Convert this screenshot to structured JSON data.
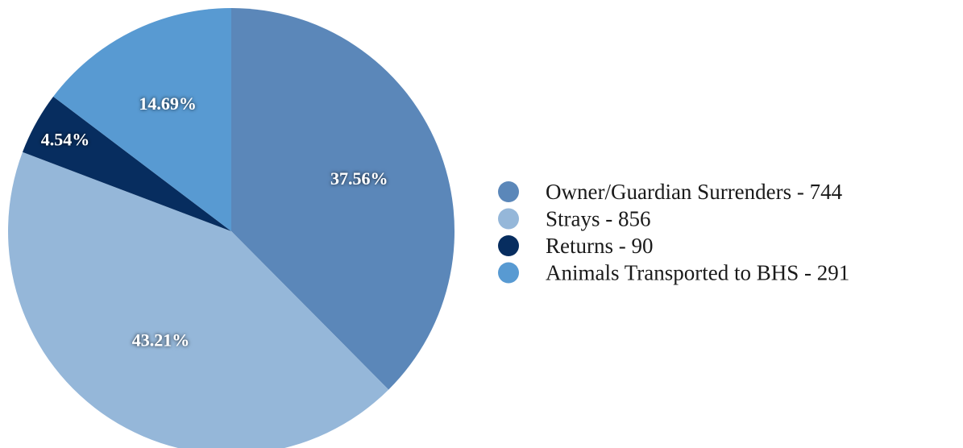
{
  "chart_data": {
    "type": "pie",
    "title": "",
    "start_angle_deg": 0,
    "direction": "clockwise",
    "legend_position": "right",
    "slices": [
      {
        "label": "Owner/Guardian Surrenders - 744",
        "value": 744,
        "percent_label": "37.56%",
        "color": "#5b87b9"
      },
      {
        "label": "Strays - 856",
        "value": 856,
        "percent_label": "43.21%",
        "color": "#95b7d9"
      },
      {
        "label": "Returns - 90",
        "value": 90,
        "percent_label": "4.54%",
        "color": "#072d5f"
      },
      {
        "label": "Animals Transported to BHS - 291",
        "value": 291,
        "percent_label": "14.69%",
        "color": "#589ad2"
      }
    ]
  }
}
